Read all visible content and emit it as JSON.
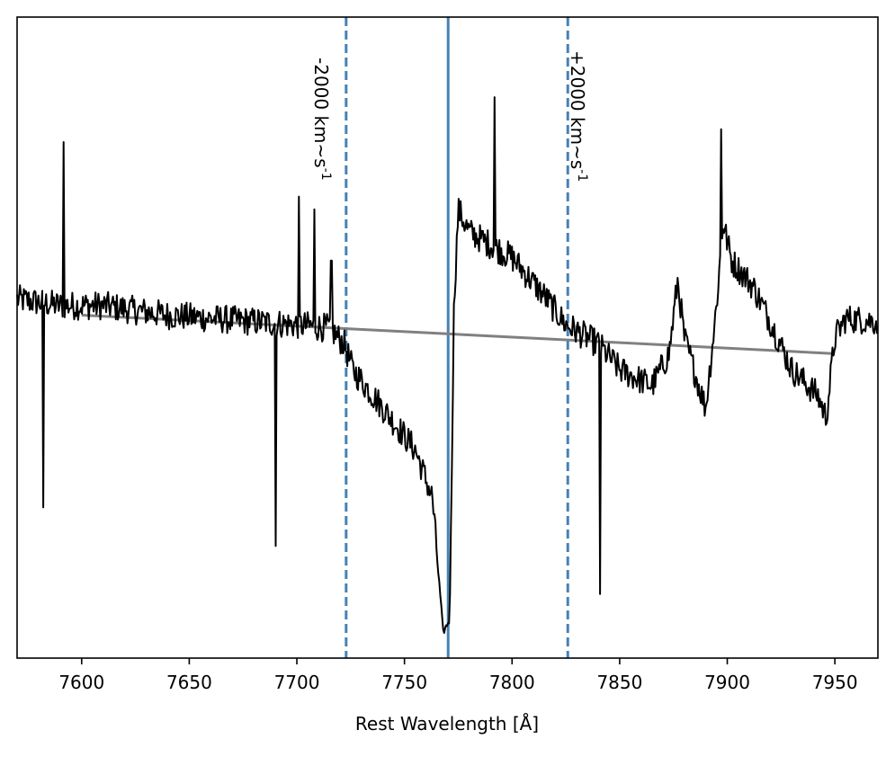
{
  "chart_data": {
    "type": "line",
    "title": "",
    "xlabel": "Rest Wavelength [Å]",
    "ylabel": "",
    "xlim": [
      7570,
      7970
    ],
    "ylim": [
      -1.0,
      1.0
    ],
    "x_ticks": [
      7600,
      7650,
      7700,
      7750,
      7800,
      7850,
      7900,
      7950
    ],
    "x_tick_labels": [
      "7600",
      "7650",
      "7700",
      "7750",
      "7800",
      "7850",
      "7900",
      "7950"
    ],
    "y_ticks_visible": false,
    "grid": false,
    "legend": "none",
    "colors": {
      "spectrum": "#000000",
      "continuum": "#808080",
      "lines": "#4682b4"
    },
    "vlines": [
      {
        "x": 7722.9,
        "style": "dashed",
        "label": "-2000 km~s$^{-1}$"
      },
      {
        "x": 7770.3,
        "style": "solid",
        "label": ""
      },
      {
        "x": 7825.9,
        "style": "dashed",
        "label": "+2000 km~s$^{-1}$"
      }
    ],
    "continuum": {
      "x": [
        7600,
        7950
      ],
      "y": [
        0.07,
        -0.05
      ]
    },
    "spectrum_knots": [
      [
        7570,
        0.12
      ],
      [
        7590,
        0.1
      ],
      [
        7610,
        0.1
      ],
      [
        7640,
        0.07
      ],
      [
        7660,
        0.06
      ],
      [
        7680,
        0.05
      ],
      [
        7700,
        0.04
      ],
      [
        7715,
        0.03
      ],
      [
        7722,
        -0.02
      ],
      [
        7726,
        -0.1
      ],
      [
        7740,
        -0.22
      ],
      [
        7755,
        -0.35
      ],
      [
        7763,
        -0.5
      ],
      [
        7768,
        -0.92
      ],
      [
        7771,
        -0.88
      ],
      [
        7773,
        0.1
      ],
      [
        7775,
        0.4
      ],
      [
        7780,
        0.33
      ],
      [
        7800,
        0.25
      ],
      [
        7815,
        0.13
      ],
      [
        7825,
        0.04
      ],
      [
        7840,
        -0.02
      ],
      [
        7850,
        -0.1
      ],
      [
        7865,
        -0.15
      ],
      [
        7873,
        -0.05
      ],
      [
        7877,
        0.18
      ],
      [
        7880,
        0.0
      ],
      [
        7890,
        -0.22
      ],
      [
        7895,
        0.1
      ],
      [
        7898,
        0.36
      ],
      [
        7902,
        0.24
      ],
      [
        7912,
        0.16
      ],
      [
        7920,
        0.05
      ],
      [
        7930,
        -0.1
      ],
      [
        7942,
        -0.18
      ],
      [
        7946,
        -0.25
      ],
      [
        7950,
        0.0
      ],
      [
        7955,
        0.06
      ],
      [
        7970,
        0.05
      ]
    ],
    "spikes": [
      [
        7582,
        -0.53
      ],
      [
        7591.5,
        0.61
      ],
      [
        7690,
        -0.65
      ],
      [
        7701,
        0.44
      ],
      [
        7708,
        0.4
      ],
      [
        7716,
        0.24
      ],
      [
        7792,
        0.75
      ],
      [
        7841,
        -0.8
      ],
      [
        7897,
        0.65
      ]
    ]
  }
}
